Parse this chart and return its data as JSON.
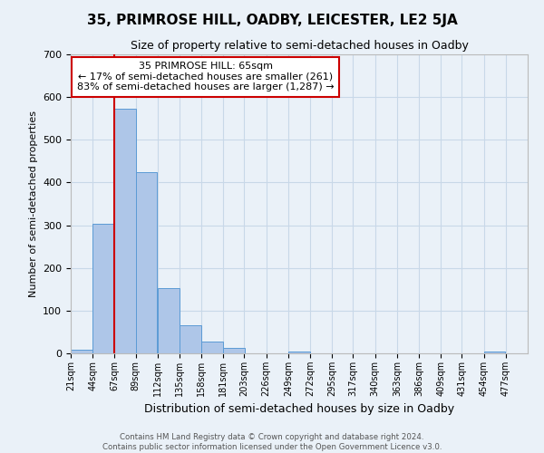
{
  "title": "35, PRIMROSE HILL, OADBY, LEICESTER, LE2 5JA",
  "subtitle": "Size of property relative to semi-detached houses in Oadby",
  "xlabel": "Distribution of semi-detached houses by size in Oadby",
  "ylabel": "Number of semi-detached properties",
  "bin_labels": [
    "21sqm",
    "44sqm",
    "67sqm",
    "89sqm",
    "112sqm",
    "135sqm",
    "158sqm",
    "181sqm",
    "203sqm",
    "226sqm",
    "249sqm",
    "272sqm",
    "295sqm",
    "317sqm",
    "340sqm",
    "363sqm",
    "386sqm",
    "409sqm",
    "431sqm",
    "454sqm",
    "477sqm"
  ],
  "bin_edges": [
    21,
    44,
    67,
    89,
    112,
    135,
    158,
    181,
    203,
    226,
    249,
    272,
    295,
    317,
    340,
    363,
    386,
    409,
    431,
    454,
    477
  ],
  "bar_heights": [
    8,
    303,
    573,
    425,
    152,
    65,
    28,
    13,
    0,
    0,
    5,
    0,
    0,
    0,
    0,
    0,
    0,
    0,
    0,
    4,
    0
  ],
  "bar_color": "#aec6e8",
  "bar_edge_color": "#5b9bd5",
  "red_line_x": 67,
  "annotation_title": "35 PRIMROSE HILL: 65sqm",
  "annotation_line2": "← 17% of semi-detached houses are smaller (261)",
  "annotation_line3": "83% of semi-detached houses are larger (1,287) →",
  "annotation_box_color": "#ffffff",
  "annotation_box_edgecolor": "#cc0000",
  "red_line_color": "#cc0000",
  "ylim": [
    0,
    700
  ],
  "yticks": [
    0,
    100,
    200,
    300,
    400,
    500,
    600,
    700
  ],
  "grid_color": "#c8d8e8",
  "footer_line1": "Contains HM Land Registry data © Crown copyright and database right 2024.",
  "footer_line2": "Contains public sector information licensed under the Open Government Licence v3.0.",
  "bg_color": "#eaf1f8"
}
